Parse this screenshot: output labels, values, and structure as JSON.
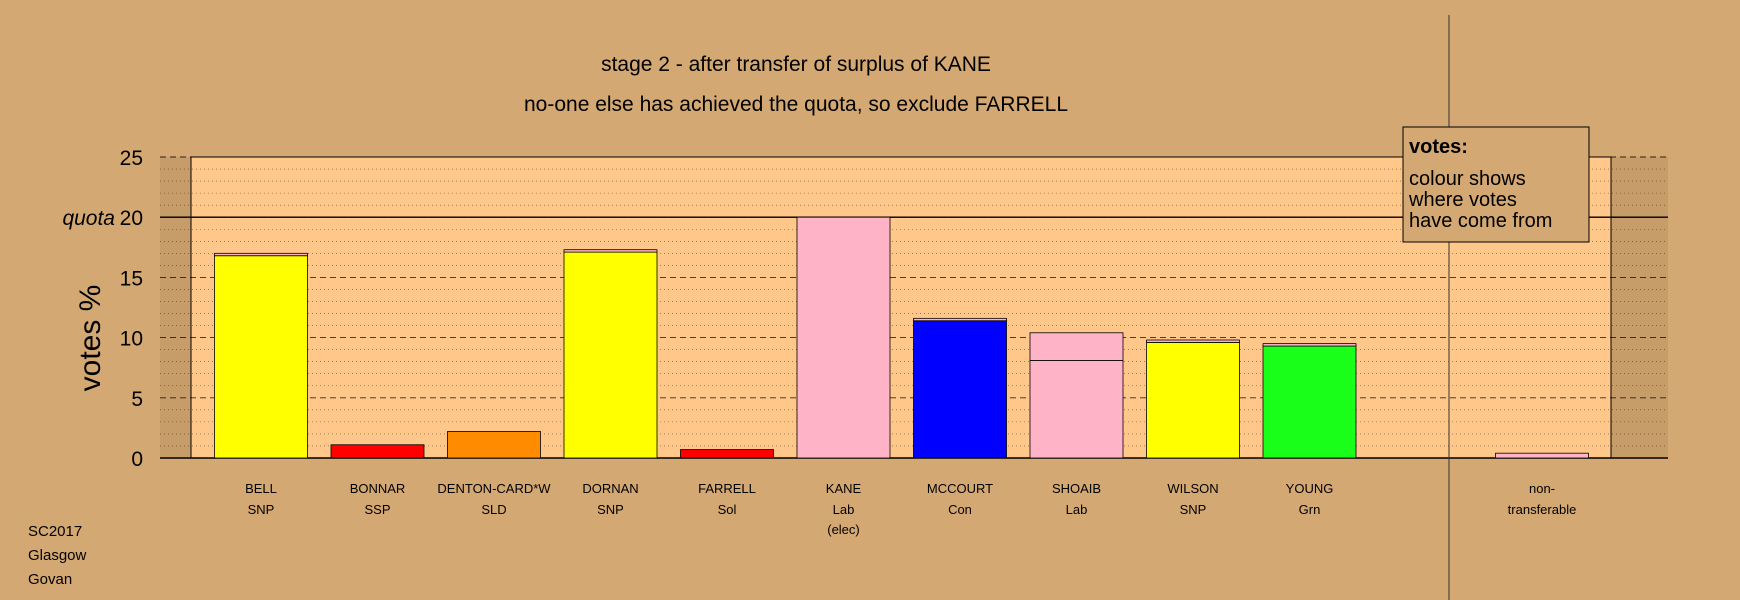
{
  "chart_data": {
    "type": "bar",
    "title": "stage 2 - after transfer of surplus of KANE",
    "subtitle": "no-one else has achieved the quota, so exclude FARRELL",
    "ylabel": "votes %",
    "ylim": [
      0,
      25
    ],
    "yticks": [
      "0",
      "5",
      "10",
      "15",
      "20",
      "25"
    ],
    "quota_label": "quota",
    "quota_value": 20,
    "grid": true,
    "legend": {
      "placement": "top-right",
      "title": "votes:",
      "lines": [
        "colour shows",
        "where votes",
        "have come from"
      ]
    },
    "candidates": [
      {
        "name": "BELL",
        "party": "SNP",
        "note": "",
        "segments": [
          {
            "value": 16.8,
            "color": "#ffff00"
          },
          {
            "value": 0.2,
            "color": "#ffb3c6"
          }
        ]
      },
      {
        "name": "BONNAR",
        "party": "SSP",
        "note": "",
        "segments": [
          {
            "value": 1.1,
            "color": "#ff0000"
          }
        ]
      },
      {
        "name": "DENTON-CARD*W",
        "party": "SLD",
        "note": "",
        "segments": [
          {
            "value": 2.2,
            "color": "#ff8c00"
          }
        ]
      },
      {
        "name": "DORNAN",
        "party": "SNP",
        "note": "",
        "segments": [
          {
            "value": 17.1,
            "color": "#ffff00"
          },
          {
            "value": 0.2,
            "color": "#ffb3c6"
          }
        ]
      },
      {
        "name": "FARRELL",
        "party": "Sol",
        "note": "",
        "segments": [
          {
            "value": 0.7,
            "color": "#ff0000"
          }
        ]
      },
      {
        "name": "KANE",
        "party": "Lab",
        "note": "(elec)",
        "segments": [
          {
            "value": 20.0,
            "color": "#ffb3c6"
          }
        ]
      },
      {
        "name": "MCCOURT",
        "party": "Con",
        "note": "",
        "segments": [
          {
            "value": 11.4,
            "color": "#0000ff"
          },
          {
            "value": 0.2,
            "color": "#ffb3c6"
          }
        ]
      },
      {
        "name": "SHOAIB",
        "party": "Lab",
        "note": "",
        "segments": [
          {
            "value": 8.1,
            "color": "#ffb3c6"
          },
          {
            "value": 2.3,
            "color": "#ffb3c6"
          }
        ]
      },
      {
        "name": "WILSON",
        "party": "SNP",
        "note": "",
        "segments": [
          {
            "value": 9.6,
            "color": "#ffff00"
          },
          {
            "value": 0.2,
            "color": "#ffb3c6"
          }
        ]
      },
      {
        "name": "YOUNG",
        "party": "Grn",
        "note": "",
        "segments": [
          {
            "value": 9.3,
            "color": "#19ff19"
          },
          {
            "value": 0.2,
            "color": "#ffb3c6"
          }
        ]
      }
    ],
    "nontransferable": {
      "label_line1": "non-",
      "label_line2": "transferable",
      "value": 0.4,
      "color": "#ffb3c6"
    }
  },
  "footer": [
    "SC2017",
    "Glasgow",
    "Govan"
  ],
  "colors": {
    "background": "#d4a872",
    "plot_background": "#ffc88a",
    "side_panel": "#c69c68"
  }
}
